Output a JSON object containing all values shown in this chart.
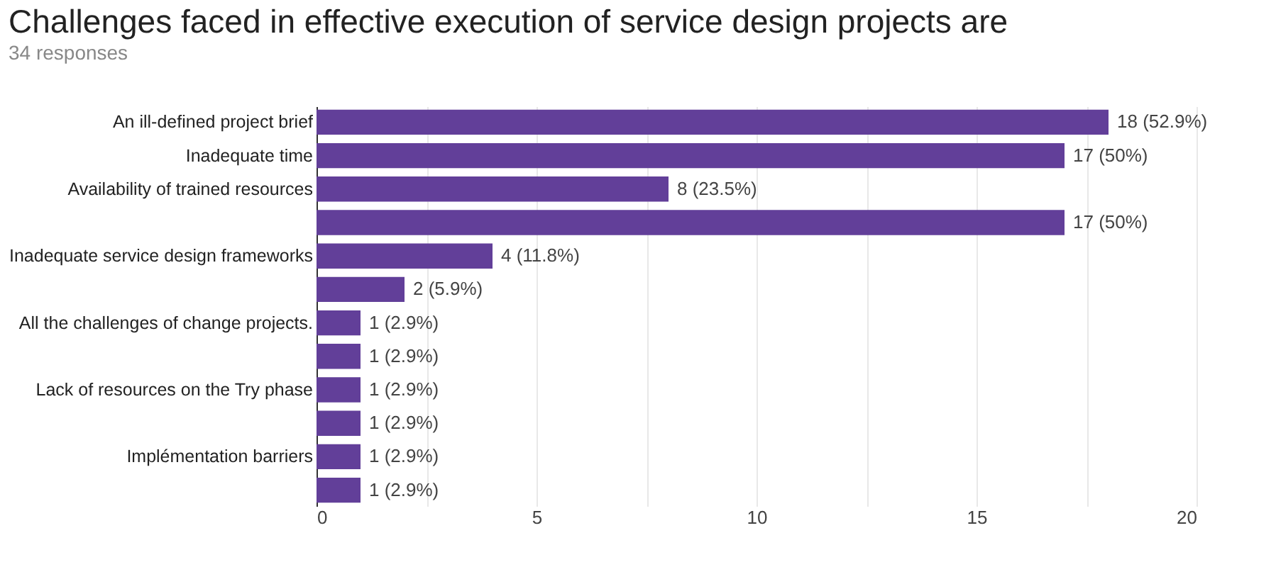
{
  "chart_data": {
    "type": "bar",
    "orientation": "horizontal",
    "title": "Challenges faced in effective execution of service design projects are",
    "subtitle": "34 responses",
    "categories": [
      "An ill-defined project brief",
      "Inadequate time",
      "Availability of trained resources",
      null,
      "Inadequate service design frameworks",
      null,
      "All the challenges of change projects.",
      null,
      "Lack of resources on the Try phase",
      null,
      "Implémentation barriers",
      null
    ],
    "values": [
      18,
      17,
      8,
      17,
      4,
      2,
      1,
      1,
      1,
      1,
      1,
      1
    ],
    "value_labels": [
      "18 (52.9%)",
      "17 (50%)",
      "8 (23.5%)",
      "17 (50%)",
      "4 (11.8%)",
      "2 (5.9%)",
      "1 (2.9%)",
      "1 (2.9%)",
      "1 (2.9%)",
      "1 (2.9%)",
      "1 (2.9%)",
      "1 (2.9%)"
    ],
    "color": "#623f99",
    "xlim": [
      0,
      20
    ],
    "xticks": [
      0,
      {
        "value": 2.5,
        "label": null
      },
      5,
      {
        "value": 7.5,
        "label": null
      },
      10,
      {
        "value": 12.5,
        "label": null
      },
      15,
      {
        "value": 17.5,
        "label": null
      },
      20
    ],
    "grid": "x"
  }
}
